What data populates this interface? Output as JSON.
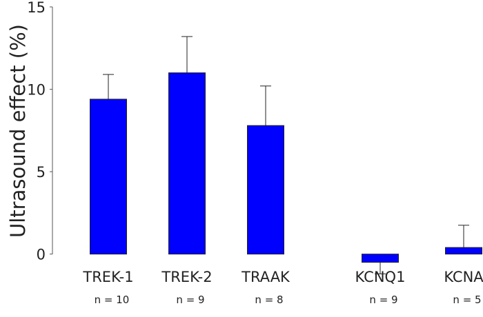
{
  "chart_data": {
    "type": "bar",
    "title": "",
    "xlabel": "",
    "ylabel": "Ultrasound effect (%)",
    "ylim": [
      0,
      15
    ],
    "yticks": [
      "0",
      "5",
      "10",
      "15"
    ],
    "grid": false,
    "bar_color": "#0000ff",
    "categories": [
      "TREK-1",
      "TREK-2",
      "TRAAK",
      "KCNQ1",
      "KCNA"
    ],
    "n_labels": [
      "n = 10",
      "n = 9",
      "n = 8",
      "n = 9",
      "n = 5"
    ],
    "values": [
      9.4,
      11.0,
      7.8,
      -0.5,
      0.4
    ],
    "error": [
      1.5,
      2.2,
      2.4,
      0.7,
      1.35
    ]
  }
}
